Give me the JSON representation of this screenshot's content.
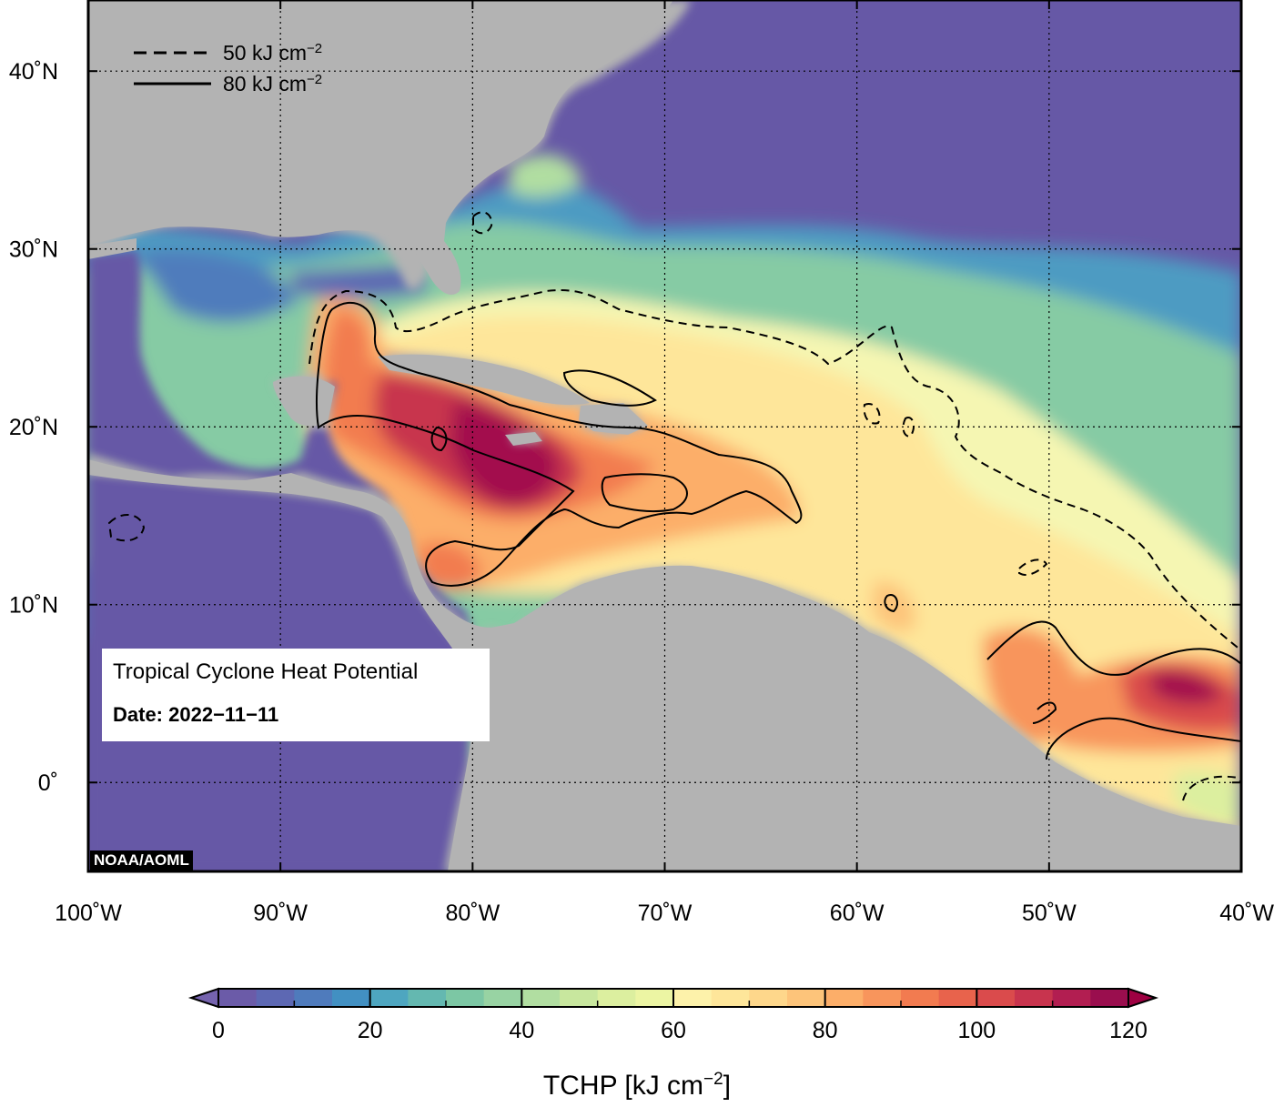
{
  "map": {
    "extent": {
      "lon": [
        -100,
        -40
      ],
      "lat": [
        -5,
        44
      ]
    },
    "lon_ticks": [
      {
        "value": -100,
        "label": "100˚W"
      },
      {
        "value": -90,
        "label": "90˚W"
      },
      {
        "value": -80,
        "label": "80˚W"
      },
      {
        "value": -70,
        "label": "70˚W"
      },
      {
        "value": -60,
        "label": "60˚W"
      },
      {
        "value": -50,
        "label": "50˚W"
      },
      {
        "value": -40,
        "label": "40˚W"
      }
    ],
    "lat_ticks": [
      {
        "value": 40,
        "label": "40˚N"
      },
      {
        "value": 30,
        "label": "30˚N"
      },
      {
        "value": 20,
        "label": "20˚N"
      },
      {
        "value": 10,
        "label": "10˚N"
      },
      {
        "value": 0,
        "label": "0˚"
      }
    ],
    "gridlines": "dotted",
    "land_color": "#b3b3b3",
    "ocean_low_color": "#6658a6"
  },
  "legend": {
    "placement": "top-left",
    "items": [
      {
        "style": "dashed",
        "label": "50 kJ cm",
        "sup": "−2"
      },
      {
        "style": "solid",
        "label": "80 kJ cm",
        "sup": "−2"
      }
    ]
  },
  "info": {
    "title": "Tropical Cyclone Heat Potential",
    "date": "Date: 2022−11−11"
  },
  "credit": "NOAA/AOML",
  "colorbar": {
    "min": 0,
    "max": 120,
    "step": 5,
    "tick_values": [
      0,
      20,
      40,
      60,
      80,
      100,
      120
    ],
    "title": "TCHP [kJ cm",
    "title_sup": "−2",
    "title_end": "]",
    "colors": [
      "#6b5ba8",
      "#5d68b3",
      "#4f7bbc",
      "#4290c2",
      "#4ea6c0",
      "#64b8b0",
      "#7cc7a4",
      "#98d3a3",
      "#b1dea1",
      "#c8e79e",
      "#dcef9f",
      "#ecf5a3",
      "#f8f9b4",
      "#fdf2aa",
      "#fee69a",
      "#fed78b",
      "#fdc47a",
      "#fcae69",
      "#f8955c",
      "#f27b50",
      "#e8634c",
      "#da4b4c",
      "#c8344e",
      "#b21e51",
      "#9a0e4e"
    ],
    "under_color": "#7563ae",
    "over_color": "#9e0142"
  }
}
